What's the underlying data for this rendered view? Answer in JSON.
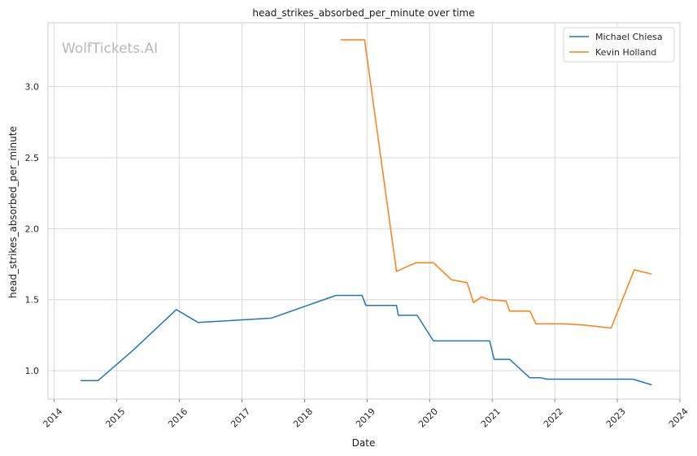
{
  "chart_data": {
    "type": "line",
    "title": "head_strikes_absorbed_per_minute over time",
    "xlabel": "Date",
    "ylabel": "head_strikes_absorbed_per_minute",
    "watermark": "WolfTickets.AI",
    "xlim": [
      2013.9,
      2024.0
    ],
    "ylim": [
      0.8,
      3.45
    ],
    "x_ticks": [
      2014,
      2015,
      2016,
      2017,
      2018,
      2019,
      2020,
      2021,
      2022,
      2023,
      2024
    ],
    "x_tick_labels": [
      "2014",
      "2015",
      "2016",
      "2017",
      "2018",
      "2019",
      "2020",
      "2021",
      "2022",
      "2023",
      "2024"
    ],
    "y_ticks": [
      1.0,
      1.5,
      2.0,
      2.5,
      3.0
    ],
    "y_tick_labels": [
      "1.0",
      "1.5",
      "2.0",
      "2.5",
      "3.0"
    ],
    "grid": true,
    "legend_position": "top-right",
    "series": [
      {
        "name": "Michael Chiesa",
        "color": "#1f77b4",
        "x": [
          2014.42,
          2014.7,
          2015.25,
          2015.95,
          2016.3,
          2017.47,
          2018.5,
          2018.92,
          2018.98,
          2019.47,
          2019.5,
          2019.8,
          2020.06,
          2020.96,
          2021.03,
          2021.28,
          2021.6,
          2021.78,
          2021.87,
          2022.6,
          2023.25,
          2023.55
        ],
        "y": [
          0.93,
          0.93,
          1.14,
          1.43,
          1.34,
          1.37,
          1.53,
          1.53,
          1.46,
          1.46,
          1.39,
          1.39,
          1.21,
          1.21,
          1.08,
          1.08,
          0.95,
          0.95,
          0.94,
          0.94,
          0.94,
          0.9
        ]
      },
      {
        "name": "Kevin Holland",
        "color": "#ff7f0e",
        "x": [
          2018.58,
          2018.96,
          2019.47,
          2019.78,
          2020.06,
          2020.35,
          2020.6,
          2020.7,
          2020.83,
          2020.95,
          2021.22,
          2021.28,
          2021.6,
          2021.7,
          2022.15,
          2022.5,
          2022.7,
          2022.9,
          2023.27,
          2023.55
        ],
        "y": [
          3.33,
          3.33,
          1.7,
          1.76,
          1.76,
          1.64,
          1.62,
          1.48,
          1.52,
          1.5,
          1.49,
          1.42,
          1.42,
          1.33,
          1.33,
          1.32,
          1.31,
          1.3,
          1.71,
          1.68
        ]
      }
    ]
  }
}
